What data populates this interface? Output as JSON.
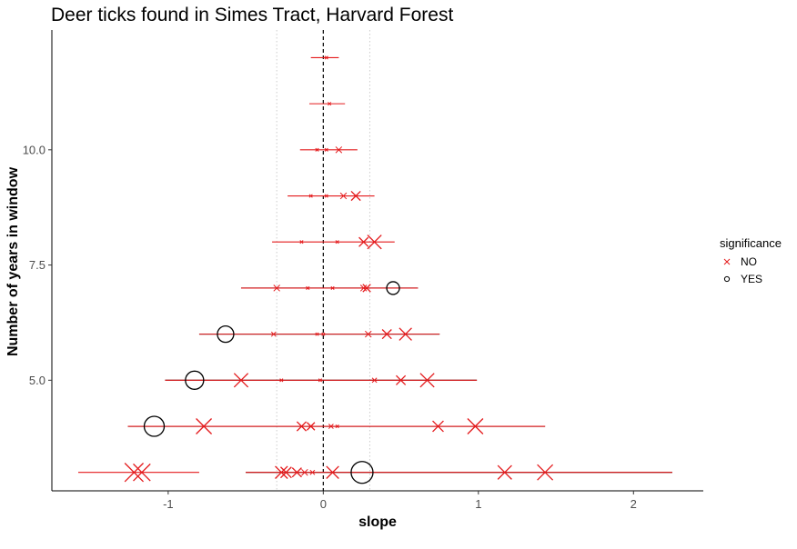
{
  "chart_data": {
    "type": "scatter",
    "title": "Deer ticks found in Simes Tract, Harvard Forest",
    "xlabel": "slope",
    "ylabel": "Number of years in window",
    "xlim": [
      -1.75,
      2.45
    ],
    "ylim": [
      2.6,
      12.6
    ],
    "x_ticks": [
      -1,
      0,
      1,
      2
    ],
    "x_tick_labels": [
      "-1",
      "0",
      "1",
      "2"
    ],
    "y_ticks": [
      5.0,
      7.5,
      10.0
    ],
    "y_tick_labels": [
      "5.0",
      "7.5",
      "10.0"
    ],
    "zero_line": 0,
    "ref_lines": [
      -0.3,
      0.3
    ],
    "grid": false,
    "legend": {
      "title": "significance",
      "position": "right",
      "entries": [
        {
          "label": "NO",
          "shape": "x",
          "color": "#e41a1c"
        },
        {
          "label": "YES",
          "shape": "circle",
          "color": "#000000"
        }
      ]
    },
    "colors": {
      "NO": "#e41a1c",
      "YES": "#000000"
    },
    "points": [
      {
        "window": 12,
        "slope": 0.02,
        "lo": -0.08,
        "hi": 0.1,
        "significance": "NO",
        "size": 2
      },
      {
        "window": 11,
        "slope": 0.04,
        "lo": -0.09,
        "hi": 0.14,
        "significance": "NO",
        "size": 2
      },
      {
        "window": 10,
        "slope": 0.1,
        "lo": -0.15,
        "hi": 0.22,
        "significance": "NO",
        "size": 4
      },
      {
        "window": 10,
        "slope": 0.02,
        "lo": -0.15,
        "hi": 0.22,
        "significance": "NO",
        "size": 2
      },
      {
        "window": 10,
        "slope": -0.04,
        "lo": -0.15,
        "hi": 0.22,
        "significance": "NO",
        "size": 2
      },
      {
        "window": 9,
        "slope": 0.21,
        "lo": -0.23,
        "hi": 0.33,
        "significance": "NO",
        "size": 6
      },
      {
        "window": 9,
        "slope": 0.13,
        "lo": -0.23,
        "hi": 0.33,
        "significance": "NO",
        "size": 4
      },
      {
        "window": 9,
        "slope": 0.02,
        "lo": -0.23,
        "hi": 0.33,
        "significance": "NO",
        "size": 2
      },
      {
        "window": 9,
        "slope": -0.08,
        "lo": -0.23,
        "hi": 0.33,
        "significance": "NO",
        "size": 2
      },
      {
        "window": 8,
        "slope": 0.33,
        "lo": -0.33,
        "hi": 0.46,
        "significance": "NO",
        "size": 9
      },
      {
        "window": 8,
        "slope": 0.26,
        "lo": -0.33,
        "hi": 0.46,
        "significance": "NO",
        "size": 6
      },
      {
        "window": 8,
        "slope": 0.09,
        "lo": -0.33,
        "hi": 0.46,
        "significance": "NO",
        "size": 2
      },
      {
        "window": 8,
        "slope": -0.14,
        "lo": -0.33,
        "hi": 0.46,
        "significance": "NO",
        "size": 2
      },
      {
        "window": 7,
        "slope": 0.45,
        "lo": -0.53,
        "hi": 0.61,
        "significance": "YES",
        "size": 7
      },
      {
        "window": 7,
        "slope": 0.28,
        "lo": -0.53,
        "hi": 0.61,
        "significance": "NO",
        "size": 5
      },
      {
        "window": 7,
        "slope": 0.26,
        "lo": -0.53,
        "hi": 0.61,
        "significance": "NO",
        "size": 4
      },
      {
        "window": 7,
        "slope": 0.06,
        "lo": -0.53,
        "hi": 0.61,
        "significance": "NO",
        "size": 2
      },
      {
        "window": 7,
        "slope": -0.1,
        "lo": -0.53,
        "hi": 0.61,
        "significance": "NO",
        "size": 2
      },
      {
        "window": 7,
        "slope": -0.3,
        "lo": -0.53,
        "hi": 0.61,
        "significance": "NO",
        "size": 4
      },
      {
        "window": 6,
        "slope": -0.63,
        "lo": -0.8,
        "hi": 0.75,
        "significance": "YES",
        "size": 9
      },
      {
        "window": 6,
        "slope": 0.53,
        "lo": -0.8,
        "hi": 0.75,
        "significance": "NO",
        "size": 8
      },
      {
        "window": 6,
        "slope": 0.41,
        "lo": -0.8,
        "hi": 0.75,
        "significance": "NO",
        "size": 6
      },
      {
        "window": 6,
        "slope": 0.29,
        "lo": -0.8,
        "hi": 0.75,
        "significance": "NO",
        "size": 4
      },
      {
        "window": 6,
        "slope": 0.0,
        "lo": -0.8,
        "hi": 0.75,
        "significance": "NO",
        "size": 2
      },
      {
        "window": 6,
        "slope": -0.04,
        "lo": -0.8,
        "hi": 0.75,
        "significance": "NO",
        "size": 2
      },
      {
        "window": 6,
        "slope": -0.32,
        "lo": -0.8,
        "hi": 0.75,
        "significance": "NO",
        "size": 3
      },
      {
        "window": 5,
        "slope": -0.83,
        "lo": -1.02,
        "hi": 0.99,
        "significance": "YES",
        "size": 10
      },
      {
        "window": 5,
        "slope": -0.53,
        "lo": -1.02,
        "hi": 0.99,
        "significance": "NO",
        "size": 9
      },
      {
        "window": 5,
        "slope": 0.67,
        "lo": -1.02,
        "hi": 0.99,
        "significance": "NO",
        "size": 9
      },
      {
        "window": 5,
        "slope": 0.5,
        "lo": -1.02,
        "hi": 0.99,
        "significance": "NO",
        "size": 6
      },
      {
        "window": 5,
        "slope": 0.33,
        "lo": -1.02,
        "hi": 0.99,
        "significance": "NO",
        "size": 3
      },
      {
        "window": 5,
        "slope": -0.27,
        "lo": -1.02,
        "hi": 0.99,
        "significance": "NO",
        "size": 2
      },
      {
        "window": 5,
        "slope": -0.02,
        "lo": -1.02,
        "hi": 0.99,
        "significance": "NO",
        "size": 2
      },
      {
        "window": 4,
        "slope": -1.09,
        "lo": -1.26,
        "hi": 1.43,
        "significance": "YES",
        "size": 11
      },
      {
        "window": 4,
        "slope": -0.77,
        "lo": -1.26,
        "hi": 1.43,
        "significance": "NO",
        "size": 10
      },
      {
        "window": 4,
        "slope": 0.98,
        "lo": -1.26,
        "hi": 1.43,
        "significance": "NO",
        "size": 10
      },
      {
        "window": 4,
        "slope": 0.74,
        "lo": -1.26,
        "hi": 1.43,
        "significance": "NO",
        "size": 7
      },
      {
        "window": 4,
        "slope": -0.14,
        "lo": -1.26,
        "hi": 1.43,
        "significance": "NO",
        "size": 6
      },
      {
        "window": 4,
        "slope": -0.08,
        "lo": -1.26,
        "hi": 1.43,
        "significance": "NO",
        "size": 5
      },
      {
        "window": 4,
        "slope": 0.05,
        "lo": -1.26,
        "hi": 1.43,
        "significance": "NO",
        "size": 3
      },
      {
        "window": 4,
        "slope": 0.09,
        "lo": -1.26,
        "hi": 1.43,
        "significance": "NO",
        "size": 2
      },
      {
        "window": 3,
        "slope": 0.25,
        "lo": -0.5,
        "hi": 2.25,
        "significance": "YES",
        "size": 12
      },
      {
        "window": 3,
        "slope": -1.22,
        "lo": -1.58,
        "hi": -0.8,
        "significance": "NO",
        "size": 12
      },
      {
        "window": 3,
        "slope": -1.17,
        "lo": -1.58,
        "hi": -0.8,
        "significance": "NO",
        "size": 11
      },
      {
        "window": 3,
        "slope": 1.43,
        "lo": -0.5,
        "hi": 2.25,
        "significance": "NO",
        "size": 10
      },
      {
        "window": 3,
        "slope": 1.17,
        "lo": -0.5,
        "hi": 2.25,
        "significance": "NO",
        "size": 9
      },
      {
        "window": 3,
        "slope": -0.27,
        "lo": -0.5,
        "hi": 2.25,
        "significance": "NO",
        "size": 8
      },
      {
        "window": 3,
        "slope": -0.24,
        "lo": -0.5,
        "hi": 2.25,
        "significance": "NO",
        "size": 7
      },
      {
        "window": 3,
        "slope": -0.17,
        "lo": -0.5,
        "hi": 2.25,
        "significance": "NO",
        "size": 6
      },
      {
        "window": 3,
        "slope": 0.06,
        "lo": -0.5,
        "hi": 2.25,
        "significance": "NO",
        "size": 8
      },
      {
        "window": 3,
        "slope": -0.12,
        "lo": -0.5,
        "hi": 2.25,
        "significance": "NO",
        "size": 4
      },
      {
        "window": 3,
        "slope": -0.07,
        "lo": -0.5,
        "hi": 2.25,
        "significance": "NO",
        "size": 3
      }
    ]
  }
}
